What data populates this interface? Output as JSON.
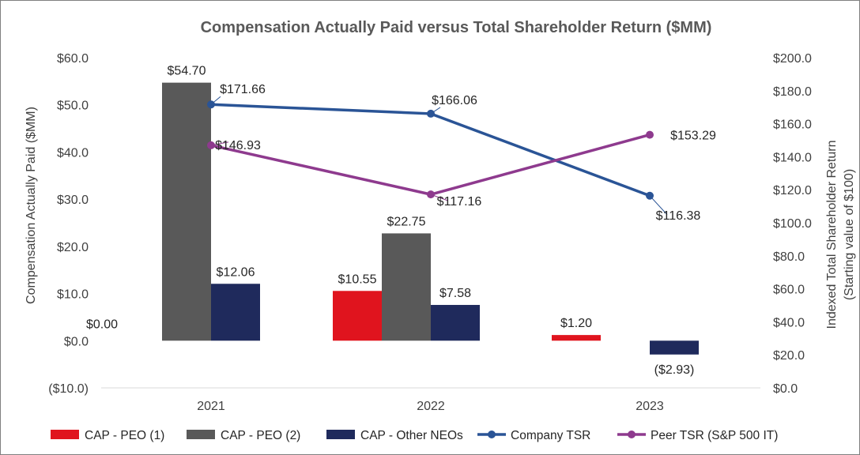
{
  "chart_data": {
    "type": "bar",
    "title": "Compensation Actually Paid versus Total Shareholder Return ($MM)",
    "categories": [
      "2021",
      "2022",
      "2023"
    ],
    "y_left": {
      "label": "Compensation Actually Paid ($MM)",
      "range": [
        -10,
        60
      ],
      "ticks": [
        60,
        50,
        40,
        30,
        20,
        10,
        0,
        -10
      ],
      "tick_labels": [
        "$60.0",
        "$50.0",
        "$40.0",
        "$30.0",
        "$20.0",
        "$10.0",
        "$0.0",
        "($10.0)"
      ]
    },
    "y_right": {
      "label_line1": "Indexed Total Shareholder Return",
      "label_line2": "(Starting value of $100)",
      "range": [
        0,
        200
      ],
      "ticks": [
        200,
        180,
        160,
        140,
        120,
        100,
        80,
        60,
        40,
        20,
        0
      ],
      "tick_labels": [
        "$200.0",
        "$180.0",
        "$160.0",
        "$140.0",
        "$120.0",
        "$100.0",
        "$80.0",
        "$60.0",
        "$40.0",
        "$20.0",
        "$0.0"
      ]
    },
    "bar_series": [
      {
        "name": "CAP - PEO (1)",
        "color": "#e0141e",
        "values": [
          0,
          10.55,
          1.2
        ],
        "labels": [
          "$0.00",
          "$10.55",
          "$1.20"
        ]
      },
      {
        "name": "CAP - PEO (2)",
        "color": "#595959",
        "values": [
          54.7,
          22.75,
          null
        ],
        "labels": [
          "$54.70",
          "$22.75",
          ""
        ]
      },
      {
        "name": "CAP - Other NEOs",
        "color": "#1f2a5c",
        "values": [
          12.06,
          7.58,
          -2.93
        ],
        "labels": [
          "$12.06",
          "$7.58",
          "($2.93)"
        ]
      }
    ],
    "line_series": [
      {
        "name": "Company TSR",
        "color": "#2a5496",
        "values": [
          171.66,
          166.06,
          116.38
        ],
        "labels": [
          "$171.66",
          "$166.06",
          "$116.38"
        ]
      },
      {
        "name": "Peer TSR (S&P 500 IT)",
        "color": "#8e3a8e",
        "values": [
          146.93,
          117.16,
          153.29
        ],
        "labels": [
          "$146.93",
          "$117.16",
          "$153.29"
        ]
      }
    ],
    "legend_position": "bottom",
    "grid": false
  }
}
